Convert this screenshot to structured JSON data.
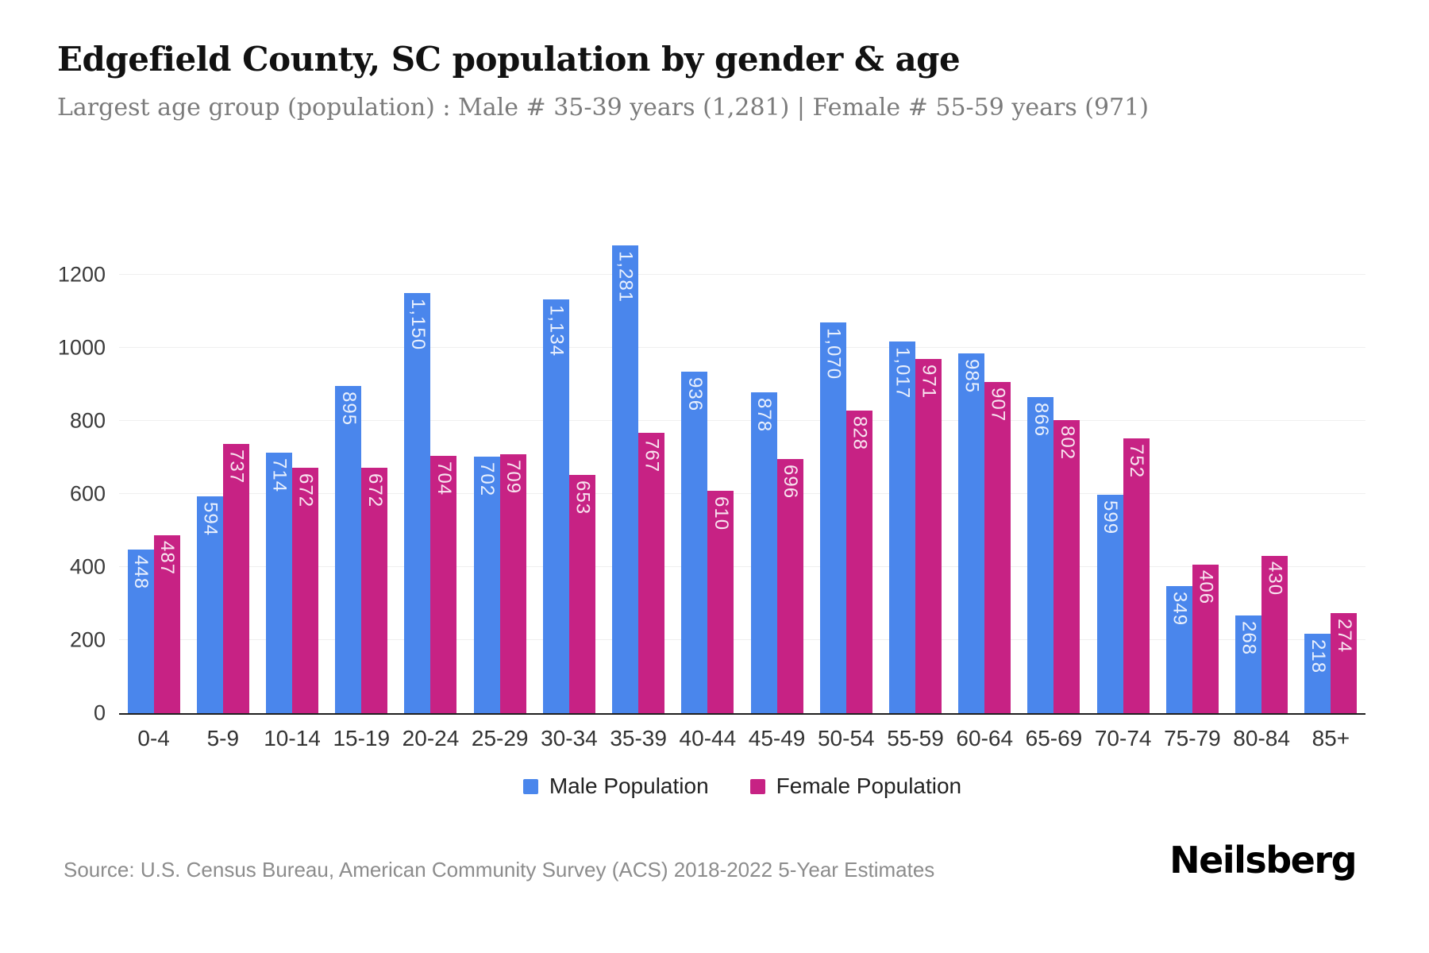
{
  "title": "Edgefield County, SC population by gender & age",
  "subtitle": "Largest age group (population) : Male # 35-39 years (1,281) | Female # 55-59 years (971)",
  "source": "Source: U.S. Census Bureau, American Community Survey (ACS) 2018-2022 5-Year Estimates",
  "brand": "Neilsberg",
  "colors": {
    "male": "#4A86EC",
    "female": "#C72284"
  },
  "legend": [
    {
      "label": "Male Population",
      "color_key": "male"
    },
    {
      "label": "Female Population",
      "color_key": "female"
    }
  ],
  "chart_data": {
    "type": "bar",
    "title": "Edgefield County, SC population by gender & age",
    "categories": [
      "0-4",
      "5-9",
      "10-14",
      "15-19",
      "20-24",
      "25-29",
      "30-34",
      "35-39",
      "40-44",
      "45-49",
      "50-54",
      "55-59",
      "60-64",
      "65-69",
      "70-74",
      "75-79",
      "80-84",
      "85+"
    ],
    "series": [
      {
        "name": "Male Population",
        "color_key": "male",
        "values": [
          448,
          594,
          714,
          895,
          1150,
          702,
          1134,
          1281,
          936,
          878,
          1070,
          1017,
          985,
          866,
          599,
          349,
          268,
          218
        ],
        "labels": [
          "448",
          "594",
          "714",
          "895",
          "1,150",
          "702",
          "1,134",
          "1,281",
          "936",
          "878",
          "1,070",
          "1,017",
          "985",
          "866",
          "599",
          "349",
          "268",
          "218"
        ]
      },
      {
        "name": "Female Population",
        "color_key": "female",
        "values": [
          487,
          737,
          672,
          672,
          704,
          709,
          653,
          767,
          610,
          696,
          828,
          971,
          907,
          802,
          752,
          406,
          430,
          274
        ],
        "labels": [
          "487",
          "737",
          "672",
          "672",
          "704",
          "709",
          "653",
          "767",
          "610",
          "696",
          "828",
          "971",
          "907",
          "802",
          "752",
          "406",
          "430",
          "274"
        ]
      }
    ],
    "xlabel": "",
    "ylabel": "",
    "ylim": [
      0,
      1281
    ],
    "yticks": [
      0,
      200,
      400,
      600,
      800,
      1000,
      1200
    ],
    "grid": true,
    "legend_position": "bottom",
    "bar_value_labels": "inside-top-rotated"
  }
}
